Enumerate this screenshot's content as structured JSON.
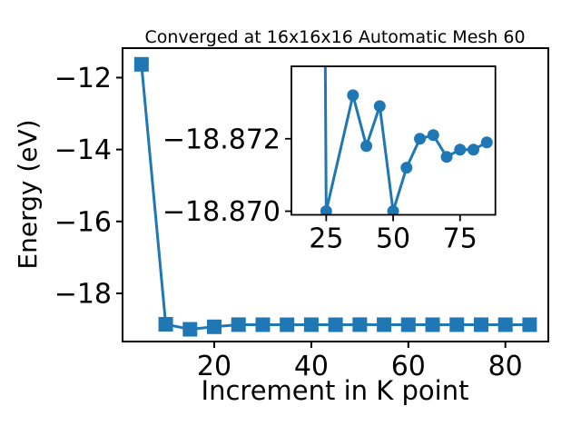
{
  "figure": {
    "background": "#ffffff",
    "accent_color": "#1f77b4",
    "text_color": "#000000"
  },
  "chart_data": [
    {
      "id": "main",
      "type": "line",
      "title": "Converged at 16x16x16 Automatic Mesh 60",
      "xlabel": "Increment in K point",
      "ylabel": "Energy (eV)",
      "legend": null,
      "grid": false,
      "marker": "square",
      "marker_size": 16,
      "line_color": "#1f77b4",
      "line_width": 3,
      "x": [
        5,
        10,
        15,
        20,
        25,
        30,
        35,
        40,
        45,
        50,
        55,
        60,
        65,
        70,
        75,
        80,
        85
      ],
      "y": [
        -11.63,
        -18.86,
        -19.0,
        -18.93,
        -18.87,
        -18.8716,
        -18.8732,
        -18.8718,
        -18.8729,
        -18.87,
        -18.8712,
        -18.872,
        -18.8721,
        -18.8715,
        -18.8717,
        -18.8717,
        -18.8719
      ],
      "xlim": [
        1.1,
        88.85
      ],
      "ylim_bottom_top": [
        -19.34,
        -11.18
      ],
      "xticks": [
        20,
        40,
        60,
        80
      ],
      "xtick_labels": [
        "20",
        "40",
        "60",
        "80"
      ],
      "yticks": [
        -12,
        -14,
        -16,
        -18
      ],
      "ytick_labels": [
        "−12",
        "−14",
        "−16",
        "−18"
      ]
    },
    {
      "id": "inset",
      "type": "line",
      "title": "",
      "xlabel": "",
      "ylabel": "",
      "legend": null,
      "grid": false,
      "marker": "circle",
      "marker_size": 13,
      "line_color": "#1f77b4",
      "line_width": 3,
      "x": [
        20,
        25,
        35,
        40,
        45,
        50,
        55,
        60,
        65,
        70,
        75,
        80,
        85
      ],
      "y": [
        -18.93,
        -18.87,
        -18.8732,
        -18.8718,
        -18.8729,
        -18.87,
        -18.8712,
        -18.872,
        -18.8721,
        -18.8715,
        -18.8717,
        -18.8717,
        -18.8719
      ],
      "xlim": [
        12,
        88.2
      ],
      "ylim_bottom_top": [
        -18.8699,
        -18.874
      ],
      "y_axis_inverted": true,
      "xticks": [
        25,
        50,
        75
      ],
      "xtick_labels": [
        "25",
        "50",
        "75"
      ],
      "yticks": [
        -18.872,
        -18.87
      ],
      "ytick_labels": [
        "−18.872",
        "−18.870"
      ],
      "note": "Inset zoom of converged region; y axis runs inverted (−18.872 above −18.870). The segment from x=20 enters from above the top edge as a vertical line down to the point at (25, −18.870)."
    }
  ]
}
